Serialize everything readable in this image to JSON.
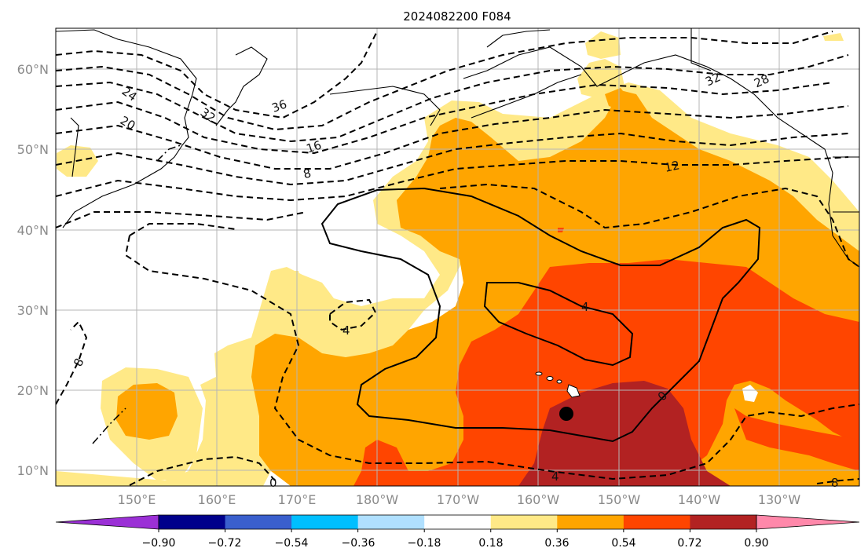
{
  "title": "2024082200 F084",
  "lat_labels": [
    "10°N",
    "20°N",
    "30°N",
    "40°N",
    "50°N",
    "60°N"
  ],
  "lon_labels": [
    "150°E",
    "160°E",
    "170°E",
    "180°W",
    "170°W",
    "160°W",
    "150°W",
    "140°W",
    "130°W"
  ],
  "colorbar": {
    "ticks": [
      "−0.90",
      "−0.72",
      "−0.54",
      "−0.36",
      "−0.18",
      "0.18",
      "0.36",
      "0.54",
      "0.72",
      "0.90"
    ],
    "colors": [
      "#9b30d6",
      "#00008b",
      "#3a5fcd",
      "#00bfff",
      "#b0e0ff",
      "#ffffff",
      "#ffe987",
      "#ffa500",
      "#ff4500",
      "#b22222",
      "#ff88aa"
    ]
  },
  "contour_labels": [
    "24",
    "20",
    "32",
    "36",
    "16",
    "8",
    "12",
    "32",
    "28",
    "0",
    "4",
    "4",
    "4",
    "8",
    "8",
    "0"
  ],
  "marker": "storm-position-dot"
}
